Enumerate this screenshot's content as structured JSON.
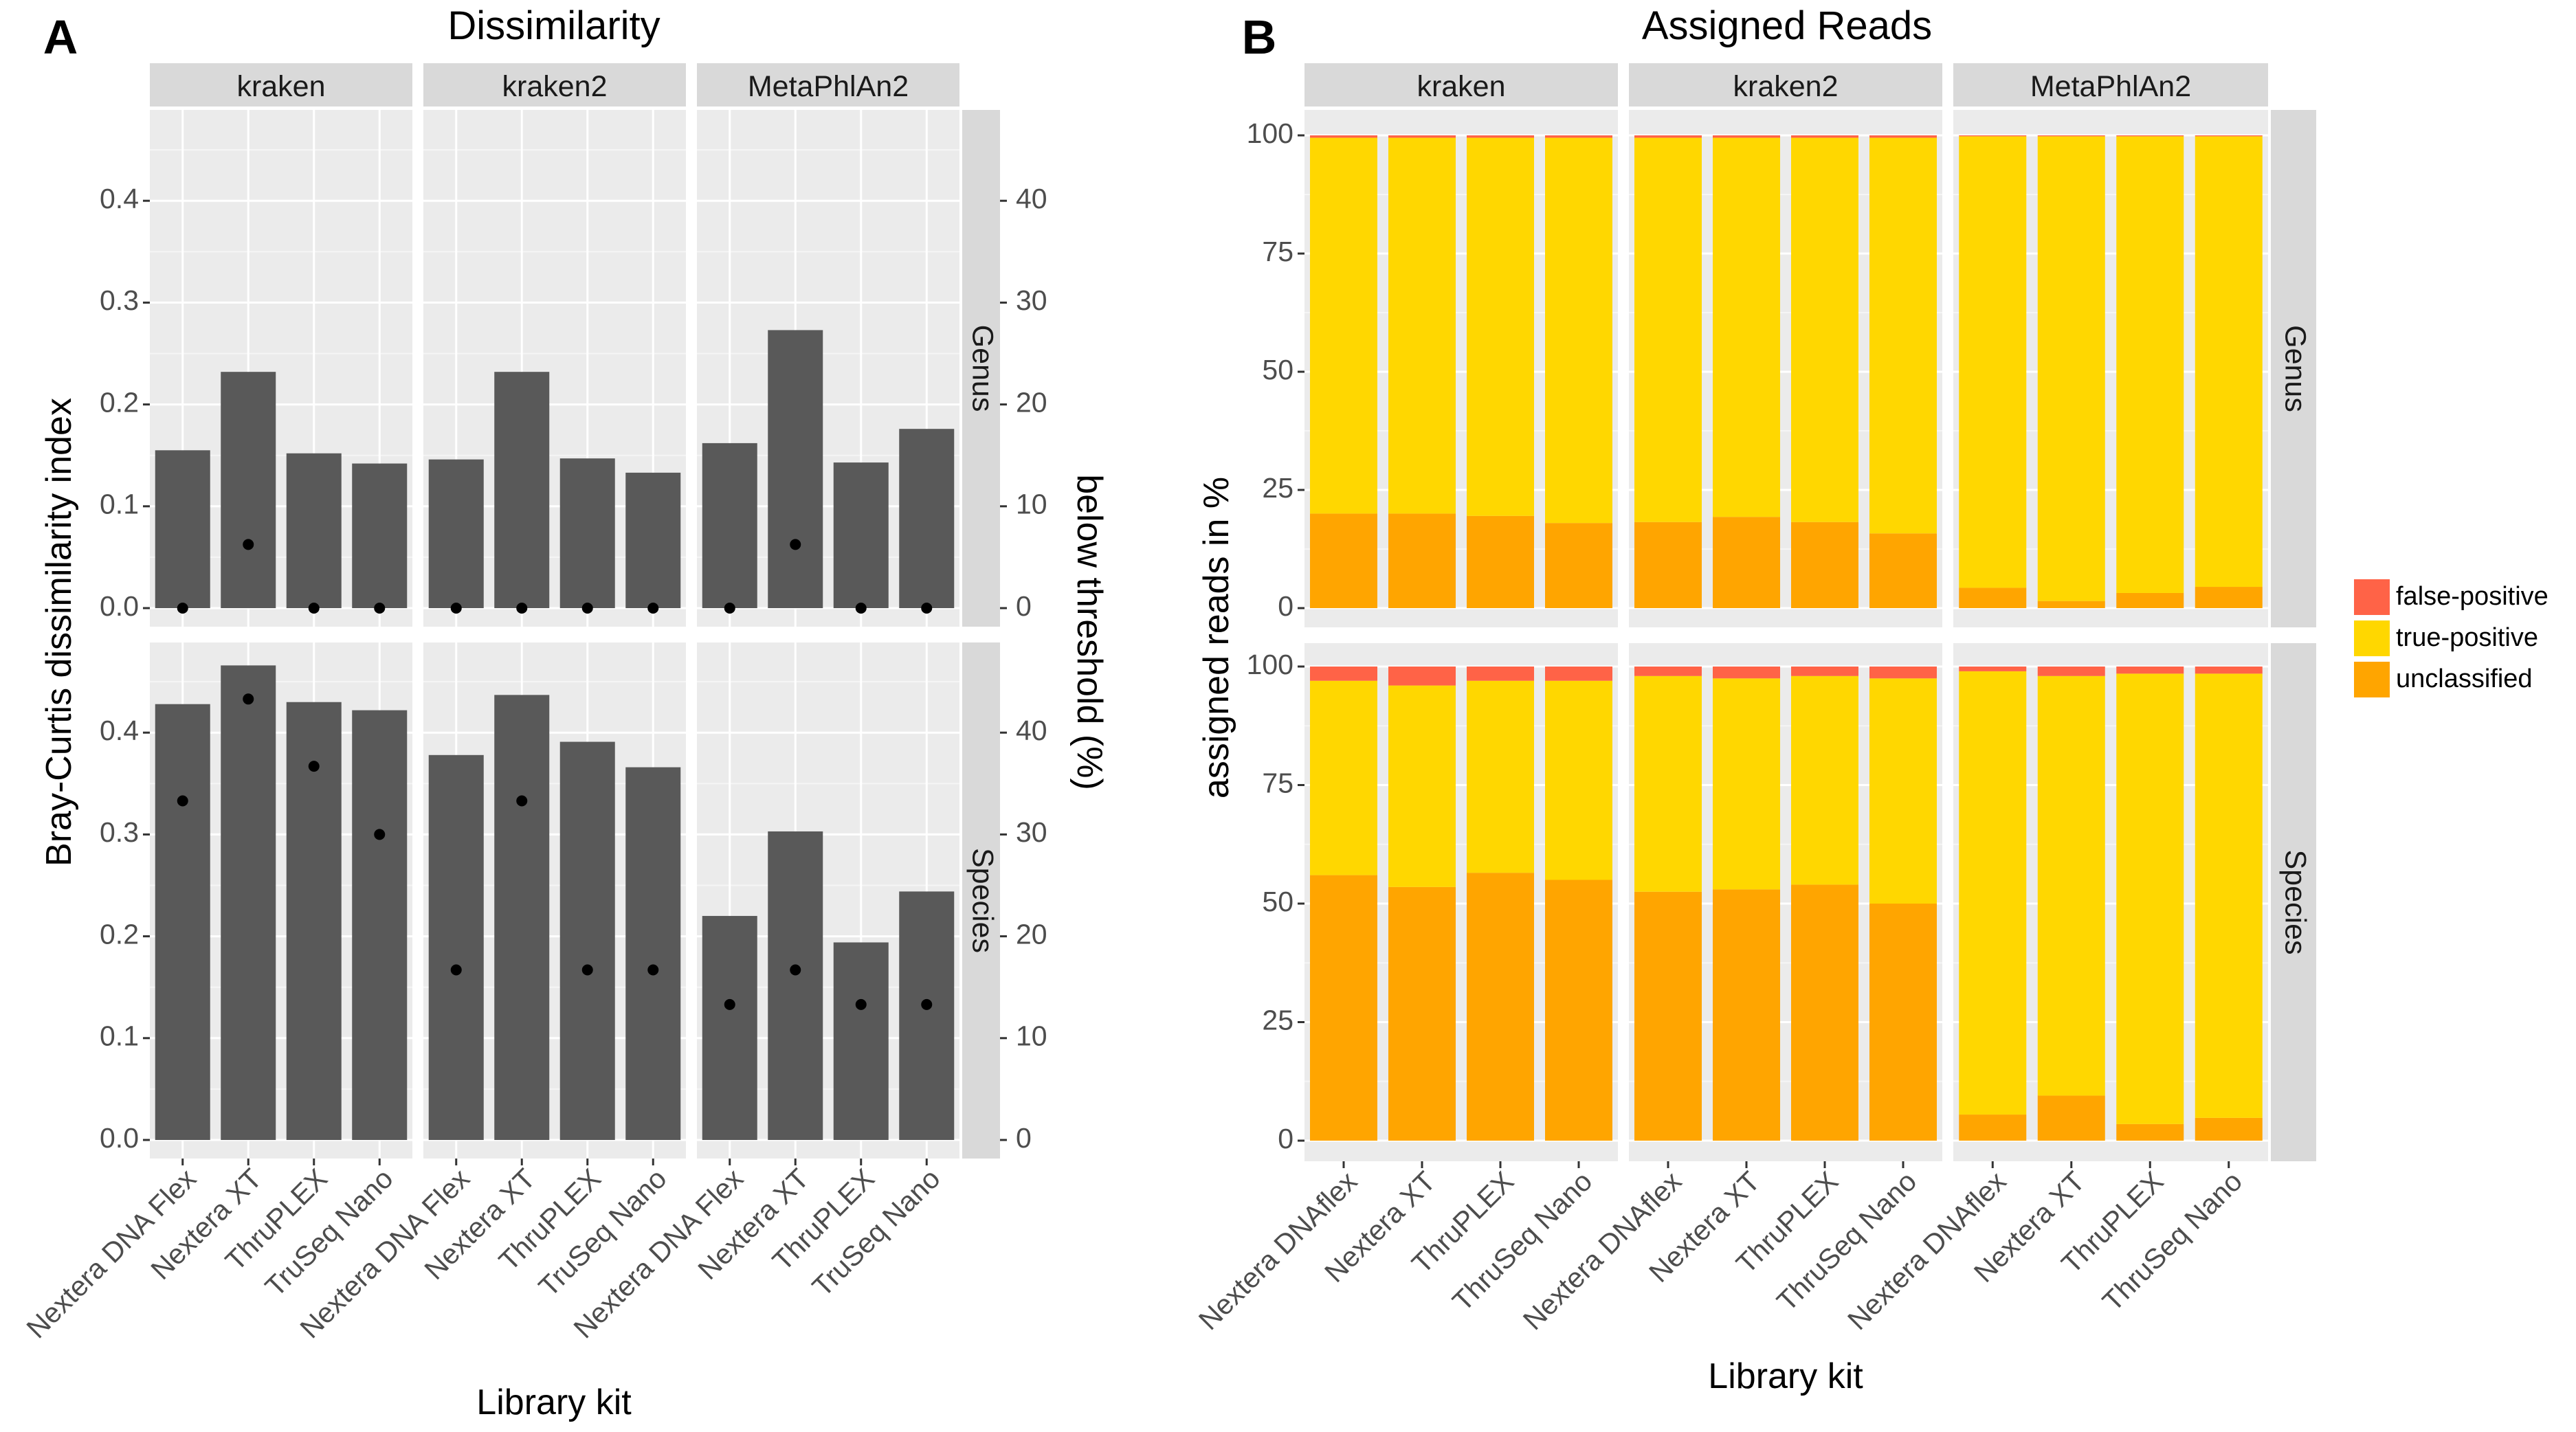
{
  "chart_data": [
    {
      "panel": "A",
      "type": "bar",
      "title": "Dissimilarity",
      "xlabel": "Library kit",
      "ylabel": "Bray-Curtis dissimilarity index",
      "y2label": "below threshold (%)",
      "ylim": [
        0,
        0.49
      ],
      "y2lim": [
        0,
        49
      ],
      "yticks": [
        0.0,
        0.1,
        0.2,
        0.3,
        0.4
      ],
      "yticklabels": [
        "0.0",
        "0.1",
        "0.2",
        "0.3",
        "0.4"
      ],
      "y2ticks": [
        0,
        10,
        20,
        30,
        40
      ],
      "y2ticklabels": [
        "0",
        "10",
        "20",
        "30",
        "40"
      ],
      "facet_cols": [
        "kraken",
        "kraken2",
        "MetaPhlAn2"
      ],
      "facet_rows": [
        "Genus",
        "Species"
      ],
      "categories": [
        "Nextera DNA Flex",
        "Nextera XT",
        "ThruPLEX",
        "TruSeq Nano"
      ],
      "bar_series_name": "Bray-Curtis dissimilarity index",
      "point_series_name": "below threshold (%)",
      "bar_color": "#595959",
      "point_color": "#000000",
      "panels": {
        "Genus": {
          "kraken": {
            "bars": [
              0.155,
              0.232,
              0.152,
              0.142
            ],
            "points": [
              0,
              6.25,
              0,
              0
            ]
          },
          "kraken2": {
            "bars": [
              0.146,
              0.232,
              0.147,
              0.133
            ],
            "points": [
              0,
              0,
              0,
              0
            ]
          },
          "MetaPhlAn2": {
            "bars": [
              0.162,
              0.273,
              0.143,
              0.176
            ],
            "points": [
              0,
              6.25,
              0,
              0
            ]
          }
        },
        "Species": {
          "kraken": {
            "bars": [
              0.428,
              0.466,
              0.43,
              0.422
            ],
            "points": [
              33.3,
              43.3,
              36.7,
              30.0
            ]
          },
          "kraken2": {
            "bars": [
              0.378,
              0.437,
              0.391,
              0.366
            ],
            "points": [
              16.7,
              33.3,
              16.7,
              16.7
            ]
          },
          "MetaPhlAn2": {
            "bars": [
              0.22,
              0.303,
              0.194,
              0.244
            ],
            "points": [
              13.3,
              16.7,
              13.3,
              13.3
            ]
          }
        }
      }
    },
    {
      "panel": "B",
      "type": "bar",
      "stacked": true,
      "title": "Assigned Reads",
      "xlabel": "Library kit",
      "ylabel": "assigned reads in %",
      "ylim": [
        0,
        104
      ],
      "yticks": [
        0,
        25,
        50,
        75,
        100
      ],
      "yticklabels": [
        "0",
        "25",
        "50",
        "75",
        "100"
      ],
      "facet_cols": [
        "kraken",
        "kraken2",
        "MetaPhlAn2"
      ],
      "facet_rows": [
        "Genus",
        "Species"
      ],
      "categories": [
        "Nextera DNAflex",
        "Nextera XT",
        "ThruPLEX",
        "ThruSeq Nano"
      ],
      "legend": [
        "false-positive",
        "true-positive",
        "unclassified"
      ],
      "colors": {
        "false-positive": "#FF6347",
        "true-positive": "#FFD700",
        "unclassified": "#FFA500"
      },
      "panels": {
        "Genus": {
          "kraken": {
            "unclassified": [
              20.0,
              20.0,
              19.5,
              18.0
            ],
            "true-positive": [
              79.5,
              79.5,
              80.0,
              81.5
            ],
            "false-positive": [
              0.5,
              0.5,
              0.5,
              0.5
            ]
          },
          "kraken2": {
            "unclassified": [
              18.2,
              19.3,
              18.2,
              15.8
            ],
            "true-positive": [
              81.3,
              80.2,
              81.3,
              83.7
            ],
            "false-positive": [
              0.5,
              0.5,
              0.5,
              0.5
            ]
          },
          "MetaPhlAn2": {
            "unclassified": [
              4.3,
              1.5,
              3.2,
              4.5
            ],
            "true-positive": [
              95.5,
              98.3,
              96.6,
              95.3
            ],
            "false-positive": [
              0.2,
              0.2,
              0.2,
              0.2
            ]
          }
        },
        "Species": {
          "kraken": {
            "unclassified": [
              56.0,
              53.5,
              56.5,
              55.0
            ],
            "true-positive": [
              41.0,
              42.5,
              40.5,
              42.0
            ],
            "false-positive": [
              3.0,
              4.0,
              3.0,
              3.0
            ]
          },
          "kraken2": {
            "unclassified": [
              52.5,
              53.0,
              54.0,
              50.0
            ],
            "true-positive": [
              45.5,
              44.5,
              44.0,
              47.5
            ],
            "false-positive": [
              2.0,
              2.5,
              2.0,
              2.5
            ]
          },
          "MetaPhlAn2": {
            "unclassified": [
              5.5,
              9.5,
              3.5,
              4.8
            ],
            "true-positive": [
              93.5,
              88.5,
              95.0,
              93.7
            ],
            "false-positive": [
              1.0,
              2.0,
              1.5,
              1.5
            ]
          }
        }
      }
    }
  ]
}
